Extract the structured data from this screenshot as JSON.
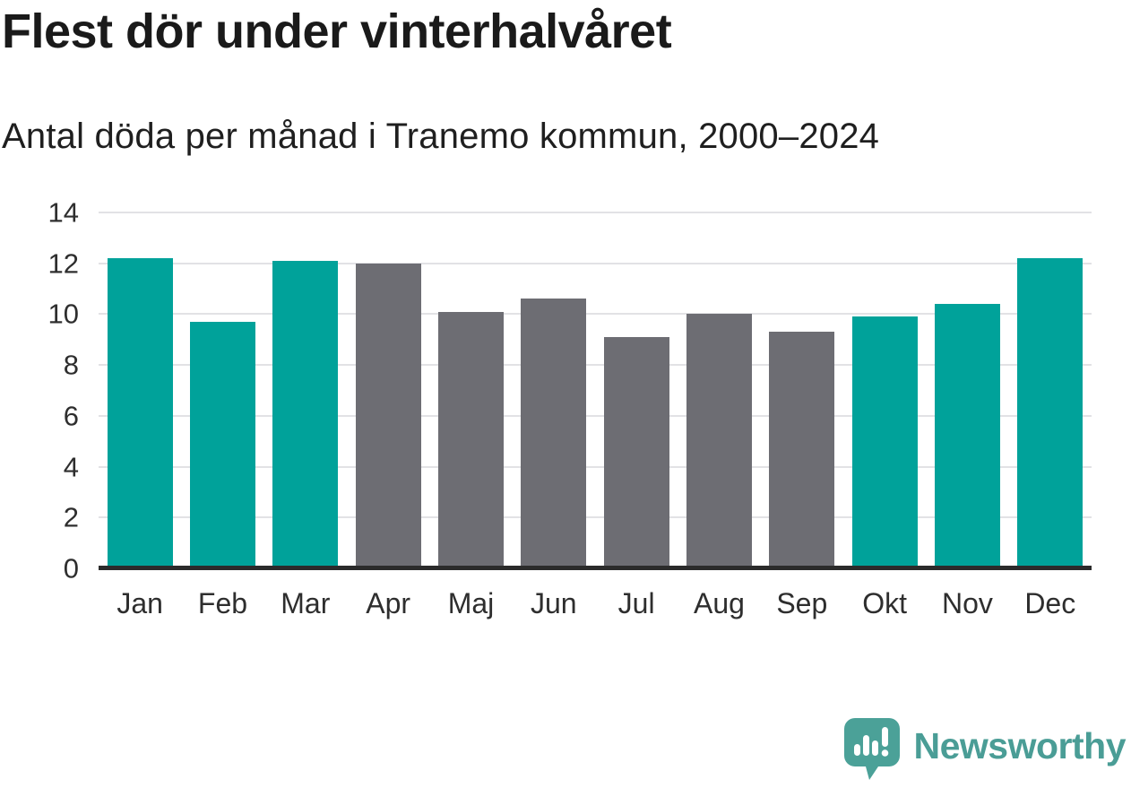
{
  "header": {
    "title": "Flest dör under vinterhalvåret",
    "subtitle": "Antal döda per månad i Tranemo kommun, 2000–2024"
  },
  "chart_data": {
    "type": "bar",
    "title": "Flest dör under vinterhalvåret",
    "subtitle": "Antal döda per månad i Tranemo kommun, 2000–2024",
    "categories": [
      "Jan",
      "Feb",
      "Mar",
      "Apr",
      "Maj",
      "Jun",
      "Jul",
      "Aug",
      "Sep",
      "Okt",
      "Nov",
      "Dec"
    ],
    "values": [
      12.2,
      9.7,
      12.1,
      12.0,
      10.1,
      10.6,
      9.1,
      10.0,
      9.3,
      9.9,
      10.4,
      12.2
    ],
    "bar_color_keys": [
      "winter",
      "winter",
      "winter",
      "summer",
      "summer",
      "summer",
      "summer",
      "summer",
      "summer",
      "winter",
      "winter",
      "winter"
    ],
    "xlabel": "",
    "ylabel": "",
    "ylim": [
      0,
      14
    ],
    "yticks": [
      0,
      2,
      4,
      6,
      8,
      10,
      12,
      14
    ],
    "grid": true,
    "legend": "none",
    "colors": {
      "winter": "#00a29a",
      "summer": "#6d6d73",
      "gridline": "#e2e2e5",
      "axis_line": "#2b2b2b",
      "tick_text": "#2e2e2e"
    }
  },
  "footer": {
    "brand": "Newsworthy",
    "brand_color": "#4a9d96"
  }
}
